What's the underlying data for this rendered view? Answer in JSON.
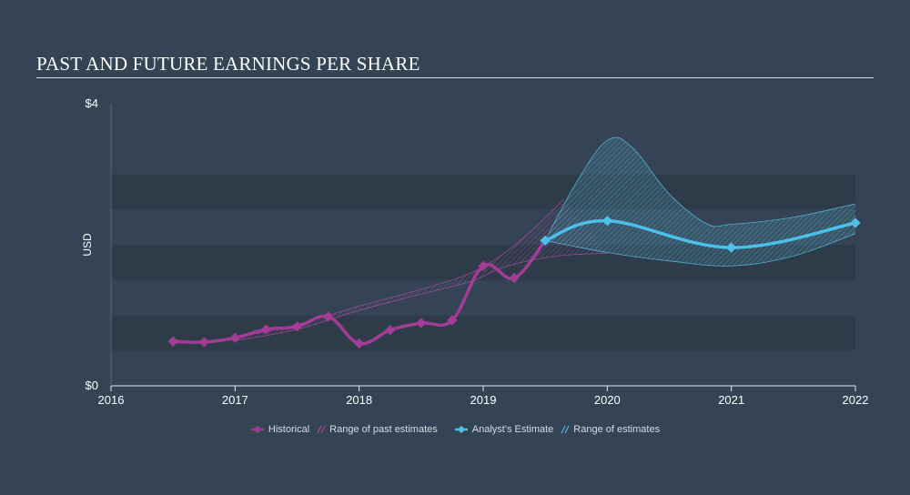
{
  "title": "PAST AND FUTURE EARNINGS PER SHARE",
  "colors": {
    "background": "#344454",
    "historical": "#a23c95",
    "historical_range": "#b34ca6",
    "estimate": "#4cc0ea",
    "estimate_range": "#5ec6ec",
    "band_dark": "#2e3c4a",
    "band_light": "#344454"
  },
  "legend": {
    "historical": "Historical",
    "past_range": "Range of past estimates",
    "estimate": "Analyst's Estimate",
    "future_range": "Range of estimates"
  },
  "chart_data": {
    "type": "line",
    "title": "PAST AND FUTURE EARNINGS PER SHARE",
    "ylabel": "USD",
    "ylim": [
      0,
      4
    ],
    "xlim": [
      2016,
      2022
    ],
    "x_ticks": [
      "2016",
      "2017",
      "2018",
      "2019",
      "2020",
      "2021",
      "2022"
    ],
    "y_ticks": [
      {
        "value": 4,
        "label": "$4"
      },
      {
        "value": 0,
        "label": "$0"
      }
    ],
    "series": [
      {
        "name": "Historical",
        "points": [
          [
            2016.5,
            0.63
          ],
          [
            2016.75,
            0.62
          ],
          [
            2017.0,
            0.68
          ],
          [
            2017.25,
            0.8
          ],
          [
            2017.5,
            0.84
          ],
          [
            2017.75,
            0.98
          ],
          [
            2018.0,
            0.6
          ],
          [
            2018.25,
            0.79
          ],
          [
            2018.5,
            0.89
          ],
          [
            2018.75,
            0.93
          ],
          [
            2019.0,
            1.7
          ],
          [
            2019.25,
            1.53
          ],
          [
            2019.5,
            2.06
          ]
        ]
      },
      {
        "name": "Analyst's Estimate",
        "points": [
          [
            2019.5,
            2.06
          ],
          [
            2020.0,
            2.34
          ],
          [
            2021.0,
            1.96
          ],
          [
            2022.0,
            2.31
          ]
        ]
      }
    ],
    "ranges": [
      {
        "name": "Range of past estimates",
        "upper": [
          [
            2017.0,
            0.68
          ],
          [
            2017.5,
            0.87
          ],
          [
            2018.0,
            1.13
          ],
          [
            2018.5,
            1.37
          ],
          [
            2018.9,
            1.6
          ],
          [
            2019.2,
            1.92
          ],
          [
            2019.5,
            2.38
          ],
          [
            2019.65,
            2.65
          ]
        ],
        "lower": [
          [
            2017.0,
            0.64
          ],
          [
            2017.5,
            0.8
          ],
          [
            2018.0,
            1.07
          ],
          [
            2018.5,
            1.3
          ],
          [
            2018.9,
            1.48
          ],
          [
            2019.2,
            1.7
          ],
          [
            2019.6,
            1.84
          ],
          [
            2020.0,
            1.88
          ]
        ]
      },
      {
        "name": "Range of estimates",
        "upper": [
          [
            2019.5,
            2.06
          ],
          [
            2019.75,
            2.88
          ],
          [
            2020.0,
            3.48
          ],
          [
            2020.2,
            3.38
          ],
          [
            2020.5,
            2.72
          ],
          [
            2020.8,
            2.3
          ],
          [
            2021.0,
            2.29
          ],
          [
            2021.5,
            2.39
          ],
          [
            2022.0,
            2.58
          ]
        ],
        "lower": [
          [
            2019.5,
            2.06
          ],
          [
            2020.0,
            1.89
          ],
          [
            2020.5,
            1.77
          ],
          [
            2021.0,
            1.7
          ],
          [
            2021.5,
            1.84
          ],
          [
            2022.0,
            2.16
          ]
        ]
      }
    ],
    "grid": true,
    "legend_position": "bottom-center"
  }
}
